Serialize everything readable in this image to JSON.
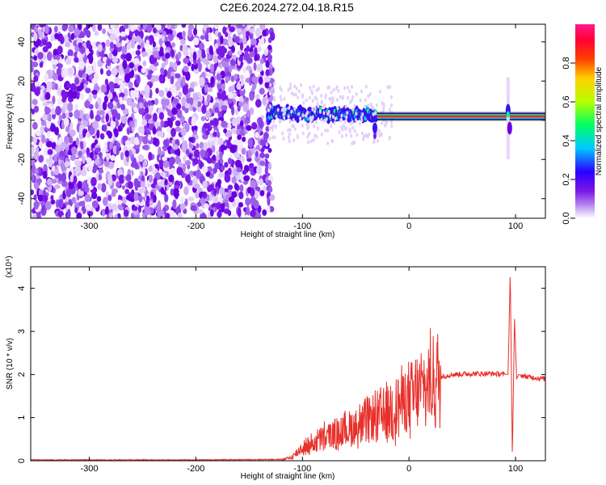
{
  "title": "C2E6.2024.272.04.18.R15",
  "chart_data": [
    {
      "type": "heatmap",
      "xlabel": "Height of straight line (km)",
      "ylabel": "Frequency (Hz)",
      "xlim": [
        -355,
        128
      ],
      "ylim": [
        -50,
        49
      ],
      "xticks": [
        -300,
        -200,
        -100,
        0,
        100
      ],
      "yticks": [
        -40,
        -20,
        0,
        20,
        40
      ],
      "colorbar": {
        "label": "Normalized spectral amplitude",
        "range": [
          0,
          1
        ],
        "ticks": [
          0.0,
          0.2,
          0.4,
          0.6,
          0.8
        ],
        "colors": [
          "#ffffff",
          "#b583f0",
          "#7a18e6",
          "#2a00ff",
          "#00c8ff",
          "#00ff66",
          "#b4ff00",
          "#ffd000",
          "#ff4000",
          "#ff0033",
          "#ff1a8c"
        ]
      },
      "features": {
        "noise_region_end_km": -140,
        "band_center_hz": [
          [
            -130,
            5
          ],
          [
            -110,
            4
          ],
          [
            -90,
            3
          ],
          [
            -70,
            3
          ],
          [
            -50,
            3
          ],
          [
            -40,
            3
          ],
          [
            -30,
            2
          ],
          [
            0,
            2
          ],
          [
            50,
            2
          ],
          [
            128,
            2
          ]
        ],
        "spike_at_km": 93
      }
    },
    {
      "type": "line",
      "xlabel": "Height of straight line (km)",
      "ylabel": "SNR (10 * v/v)",
      "y_multiplier": "(x10⁴)",
      "xlim": [
        -355,
        128
      ],
      "ylim": [
        0,
        4.5
      ],
      "xticks": [
        -300,
        -200,
        -100,
        0,
        100
      ],
      "yticks": [
        0,
        1,
        2,
        3,
        4
      ],
      "series": [
        {
          "color": "#e8302a",
          "x": [
            -355,
            -300,
            -200,
            -120,
            -110,
            -100,
            -90,
            -80,
            -70,
            -60,
            -50,
            -40,
            -30,
            -20,
            -10,
            0,
            10,
            20,
            30,
            40,
            60,
            80,
            90,
            93,
            95,
            97,
            99,
            101,
            103,
            110,
            128
          ],
          "y": [
            0.01,
            0.01,
            0.01,
            0.02,
            0.08,
            0.3,
            0.4,
            0.55,
            0.6,
            0.7,
            0.8,
            0.9,
            1.0,
            1.1,
            1.3,
            1.4,
            1.6,
            1.8,
            1.95,
            2.0,
            2.02,
            2.02,
            2.0,
            2.0,
            4.4,
            0.1,
            3.3,
            1.9,
            2.0,
            1.95,
            1.9
          ]
        }
      ]
    }
  ]
}
